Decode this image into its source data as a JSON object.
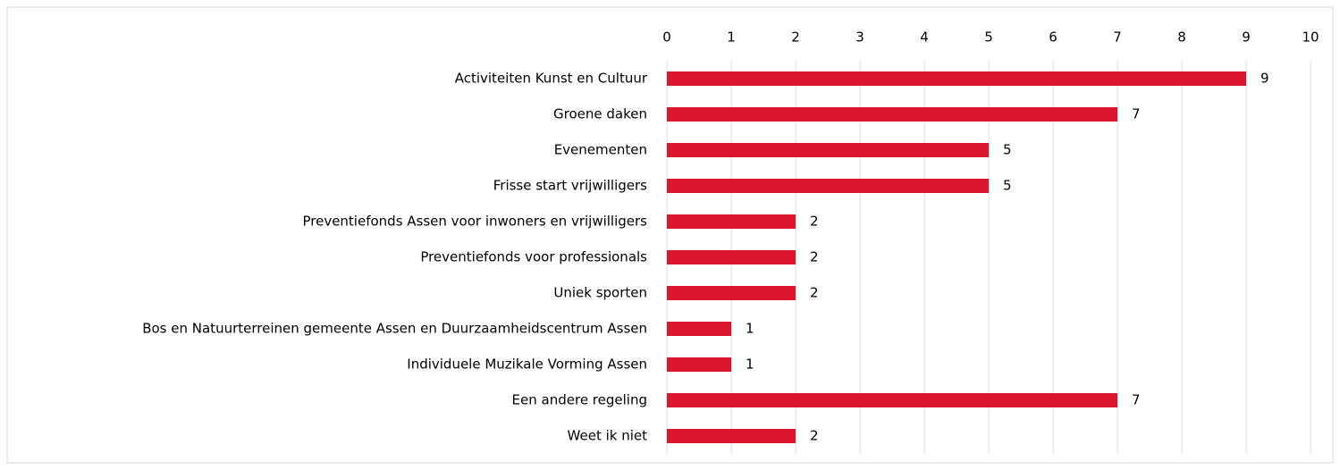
{
  "chart_data": {
    "type": "hbar",
    "categories": [
      "Activiteiten Kunst en Cultuur",
      "Groene daken",
      "Evenementen",
      "Frisse start vrijwilligers",
      "Preventiefonds Assen voor inwoners en vrijwilligers",
      "Preventiefonds voor professionals",
      "Uniek sporten",
      "Bos en Natuurterreinen gemeente Assen en Duurzaamheidscentrum Assen",
      "Individuele Muzikale Vorming Assen",
      "Een andere regeling",
      "Weet ik niet"
    ],
    "values": [
      9,
      7,
      5,
      5,
      2,
      2,
      2,
      1,
      1,
      7,
      2
    ],
    "color": "#dc1430",
    "xlim": [
      0,
      10
    ],
    "xticks": [
      0,
      1,
      2,
      3,
      4,
      5,
      6,
      7,
      8,
      9,
      10
    ],
    "grid": true
  }
}
